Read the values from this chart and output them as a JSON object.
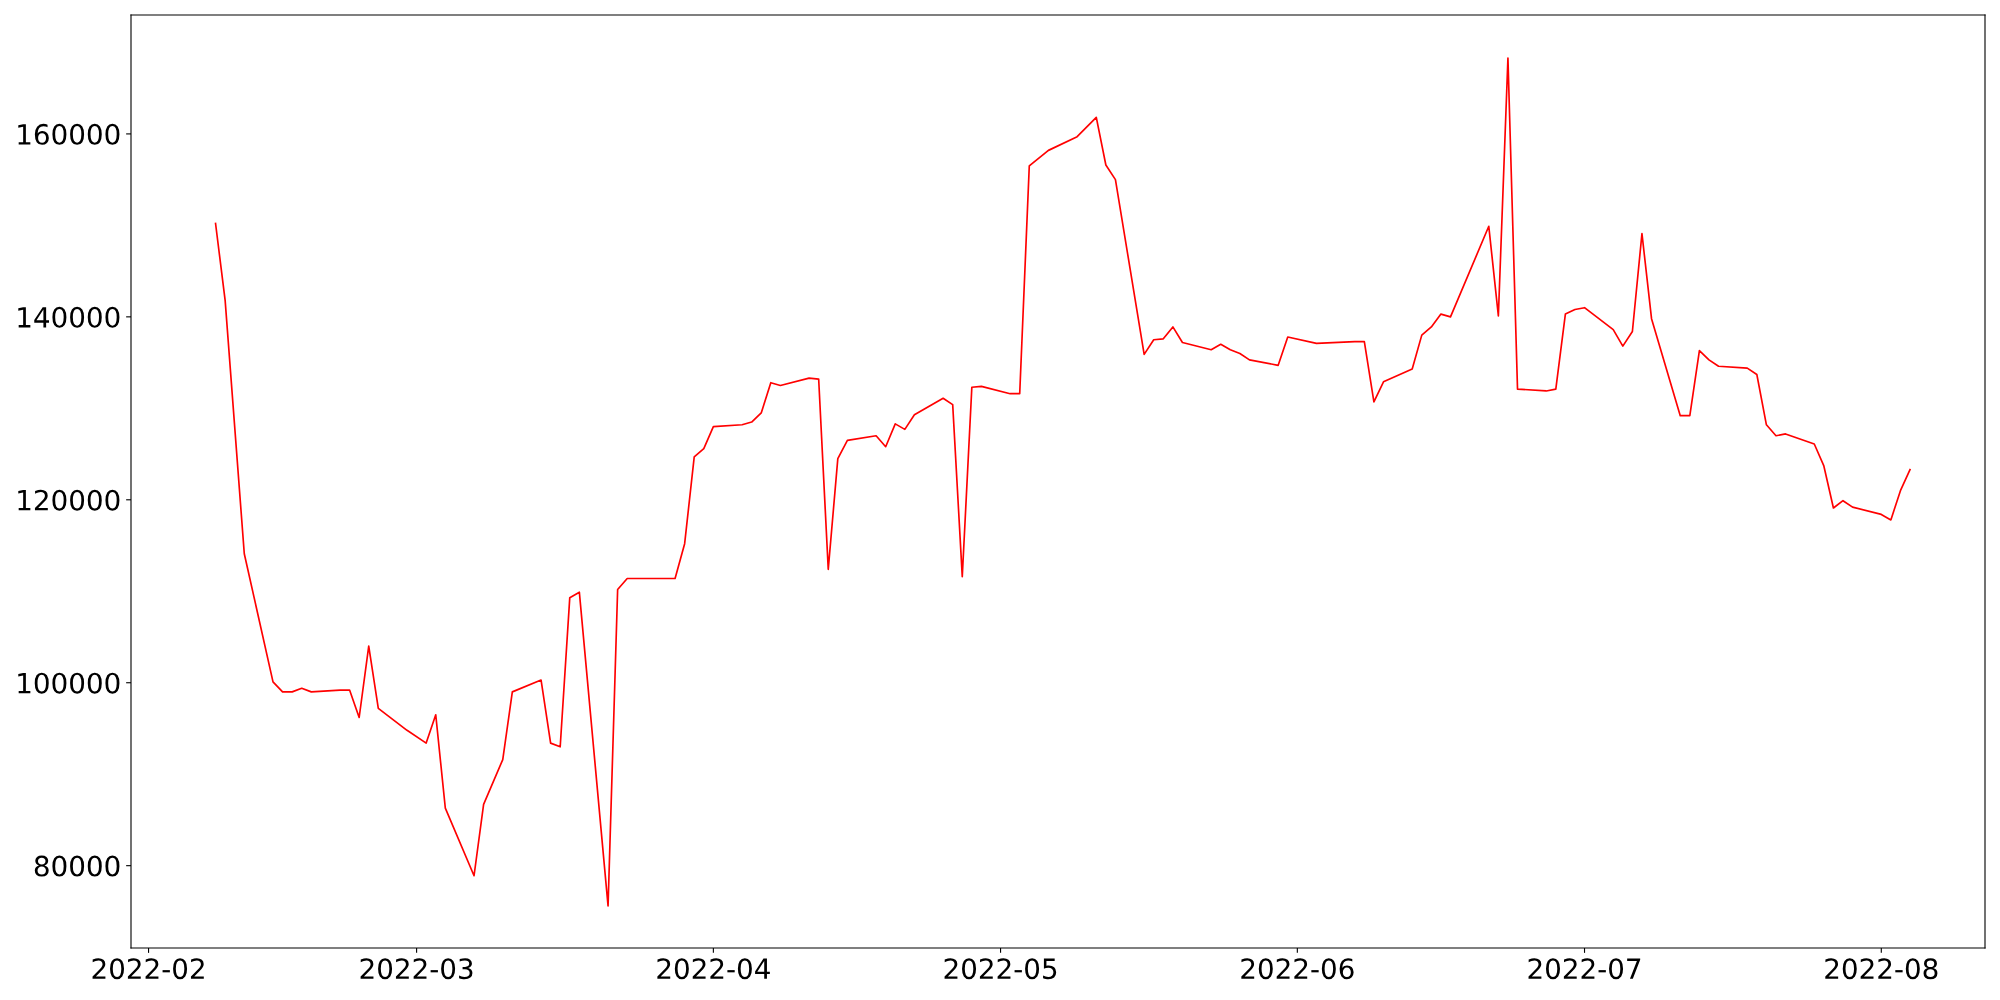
{
  "chart_data": {
    "type": "line",
    "x": [
      "2022-02-08",
      "2022-02-09",
      "2022-02-11",
      "2022-02-14",
      "2022-02-15",
      "2022-02-16",
      "2022-02-17",
      "2022-02-18",
      "2022-02-21",
      "2022-02-22",
      "2022-02-23",
      "2022-02-24",
      "2022-02-25",
      "2022-02-28",
      "2022-03-02",
      "2022-03-03",
      "2022-03-04",
      "2022-03-07",
      "2022-03-08",
      "2022-03-10",
      "2022-03-11",
      "2022-03-14",
      "2022-03-15",
      "2022-03-16",
      "2022-03-17",
      "2022-03-18",
      "2022-03-21",
      "2022-03-22",
      "2022-03-23",
      "2022-03-28",
      "2022-03-29",
      "2022-03-30",
      "2022-03-31",
      "2022-04-01",
      "2022-04-04",
      "2022-04-05",
      "2022-04-06",
      "2022-04-07",
      "2022-04-08",
      "2022-04-11",
      "2022-04-12",
      "2022-04-13",
      "2022-04-14",
      "2022-04-15",
      "2022-04-18",
      "2022-04-19",
      "2022-04-20",
      "2022-04-21",
      "2022-04-22",
      "2022-04-25",
      "2022-04-26",
      "2022-04-27",
      "2022-04-28",
      "2022-04-29",
      "2022-05-02",
      "2022-05-03",
      "2022-05-04",
      "2022-05-06",
      "2022-05-09",
      "2022-05-11",
      "2022-05-12",
      "2022-05-13",
      "2022-05-16",
      "2022-05-17",
      "2022-05-18",
      "2022-05-19",
      "2022-05-20",
      "2022-05-23",
      "2022-05-24",
      "2022-05-25",
      "2022-05-26",
      "2022-05-27",
      "2022-05-30",
      "2022-05-31",
      "2022-06-03",
      "2022-06-07",
      "2022-06-08",
      "2022-06-09",
      "2022-06-10",
      "2022-06-13",
      "2022-06-14",
      "2022-06-15",
      "2022-06-16",
      "2022-06-17",
      "2022-06-21",
      "2022-06-22",
      "2022-06-23",
      "2022-06-24",
      "2022-06-27",
      "2022-06-28",
      "2022-06-29",
      "2022-06-30",
      "2022-07-01",
      "2022-07-04",
      "2022-07-05",
      "2022-07-06",
      "2022-07-07",
      "2022-07-08",
      "2022-07-11",
      "2022-07-12",
      "2022-07-13",
      "2022-07-14",
      "2022-07-15",
      "2022-07-18",
      "2022-07-19",
      "2022-07-20",
      "2022-07-21",
      "2022-07-22",
      "2022-07-25",
      "2022-07-26",
      "2022-07-27",
      "2022-07-28",
      "2022-07-29",
      "2022-08-01",
      "2022-08-02",
      "2022-08-03",
      "2022-08-04"
    ],
    "series": [
      {
        "color": "#ff0000",
        "values": [
          150200,
          141800,
          114100,
          100100,
          99000,
          99000,
          99400,
          99000,
          99200,
          99200,
          96200,
          104000,
          97200,
          94800,
          93400,
          96500,
          86300,
          78900,
          86700,
          91600,
          99000,
          100300,
          93400,
          93000,
          109300,
          109900,
          75600,
          110200,
          111400,
          111400,
          115200,
          124700,
          125600,
          128000,
          128200,
          128500,
          129500,
          132800,
          132500,
          133300,
          133200,
          112400,
          124500,
          126500,
          127000,
          125800,
          128300,
          127700,
          129300,
          131100,
          130400,
          111600,
          132300,
          132400,
          131600,
          131600,
          156500,
          158200,
          159700,
          161800,
          156600,
          155000,
          135900,
          137500,
          137600,
          138900,
          137200,
          136400,
          137000,
          136400,
          136000,
          135300,
          134700,
          137800,
          137100,
          137300,
          137300,
          130700,
          132900,
          134300,
          138000,
          138900,
          140300,
          140000,
          149900,
          140100,
          168300,
          132100,
          131900,
          132100,
          140300,
          140800,
          141000,
          138600,
          136800,
          138400,
          149100,
          139800,
          129200,
          129200,
          136300,
          135300,
          134600,
          134400,
          133700,
          128200,
          127000,
          127200,
          126100,
          123700,
          119100,
          119900,
          119200,
          118400,
          117800,
          121000,
          123300
        ]
      }
    ],
    "xlim": [
      "2022-01-30T04:00",
      "2022-08-11T20:00"
    ],
    "xticks": [
      {
        "value": "2022-02-01",
        "label": "2022-02"
      },
      {
        "value": "2022-03-01",
        "label": "2022-03"
      },
      {
        "value": "2022-04-01",
        "label": "2022-04"
      },
      {
        "value": "2022-05-01",
        "label": "2022-05"
      },
      {
        "value": "2022-06-01",
        "label": "2022-06"
      },
      {
        "value": "2022-07-01",
        "label": "2022-07"
      },
      {
        "value": "2022-08-01",
        "label": "2022-08"
      }
    ],
    "ylim": [
      71000,
      173000
    ],
    "yticks": [
      80000,
      100000,
      120000,
      140000,
      160000
    ],
    "grid": false,
    "marker": "none",
    "line_style": "solid"
  }
}
